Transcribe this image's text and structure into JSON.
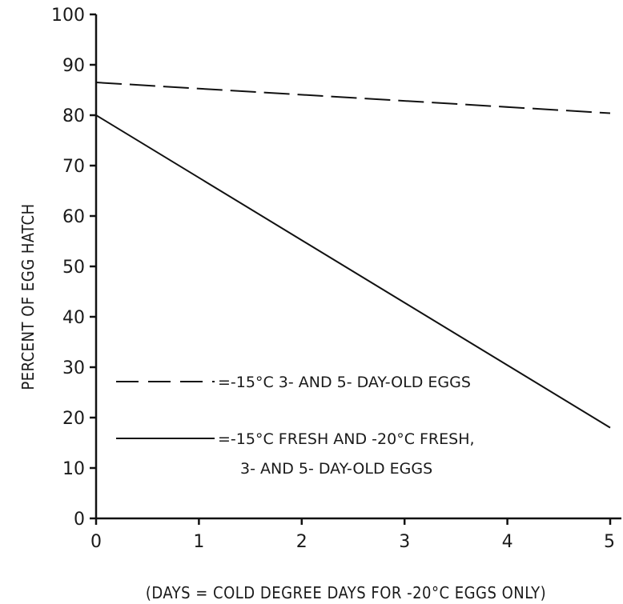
{
  "chart_data": {
    "type": "line",
    "title": "",
    "xlabel": "(DAYS = COLD DEGREE DAYS FOR -20°C EGGS ONLY)",
    "ylabel": "PERCENT OF EGG HATCH",
    "xlim": [
      0,
      5
    ],
    "ylim": [
      0,
      100
    ],
    "x_ticks": [
      "0",
      "1",
      "2",
      "3",
      "4",
      "5"
    ],
    "y_ticks": [
      "0",
      "10",
      "20",
      "30",
      "40",
      "50",
      "60",
      "70",
      "80",
      "90",
      "100"
    ],
    "grid": false,
    "legend_position": "inside-bottom-left",
    "series": [
      {
        "name": "=-15°C 3- AND 5- DAY-OLD EGGS",
        "style": "dashed",
        "x": [
          0,
          5
        ],
        "y": [
          86.5,
          80.4
        ]
      },
      {
        "name": "=-15°C FRESH AND -20°C FRESH, 3- AND 5- DAY-OLD EGGS",
        "style": "solid",
        "x": [
          0,
          5
        ],
        "y": [
          80,
          18
        ]
      }
    ],
    "legend": {
      "dashed_line1": "=-15°C 3- AND 5- DAY-OLD EGGS",
      "solid_line1": "=-15°C FRESH AND -20°C FRESH,",
      "solid_line2": "3- AND 5- DAY-OLD EGGS"
    }
  }
}
